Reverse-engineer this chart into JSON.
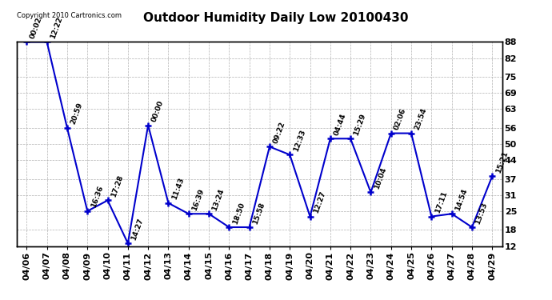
{
  "title": "Outdoor Humidity Daily Low 20100430",
  "copyright": "Copyright 2010 Cartronics.com",
  "dates": [
    "04/06",
    "04/07",
    "04/08",
    "04/09",
    "04/10",
    "04/11",
    "04/12",
    "04/13",
    "04/14",
    "04/15",
    "04/16",
    "04/17",
    "04/18",
    "04/19",
    "04/20",
    "04/21",
    "04/22",
    "04/23",
    "04/24",
    "04/25",
    "04/26",
    "04/27",
    "04/28",
    "04/29"
  ],
  "values": [
    88,
    88,
    56,
    25,
    29,
    13,
    57,
    28,
    24,
    24,
    19,
    19,
    49,
    46,
    23,
    52,
    52,
    32,
    54,
    54,
    23,
    24,
    19,
    38
  ],
  "times": [
    "00:02",
    "12:22",
    "20:59",
    "16:36",
    "17:28",
    "14:27",
    "00:00",
    "11:43",
    "16:39",
    "13:24",
    "18:50",
    "15:58",
    "09:22",
    "12:33",
    "12:27",
    "04:44",
    "15:29",
    "10:04",
    "02:06",
    "23:54",
    "17:11",
    "14:54",
    "13:53",
    "15:21"
  ],
  "line_color": "#0000cc",
  "marker_color": "#0000cc",
  "bg_color": "#ffffff",
  "plot_bg_color": "#ffffff",
  "grid_color": "#aaaaaa",
  "title_fontsize": 11,
  "tick_label_fontsize": 8,
  "annotation_fontsize": 6.5,
  "ylim": [
    12,
    88
  ],
  "yticks": [
    12,
    18,
    25,
    31,
    37,
    44,
    50,
    56,
    63,
    69,
    75,
    82,
    88
  ],
  "copyright_fontsize": 6
}
